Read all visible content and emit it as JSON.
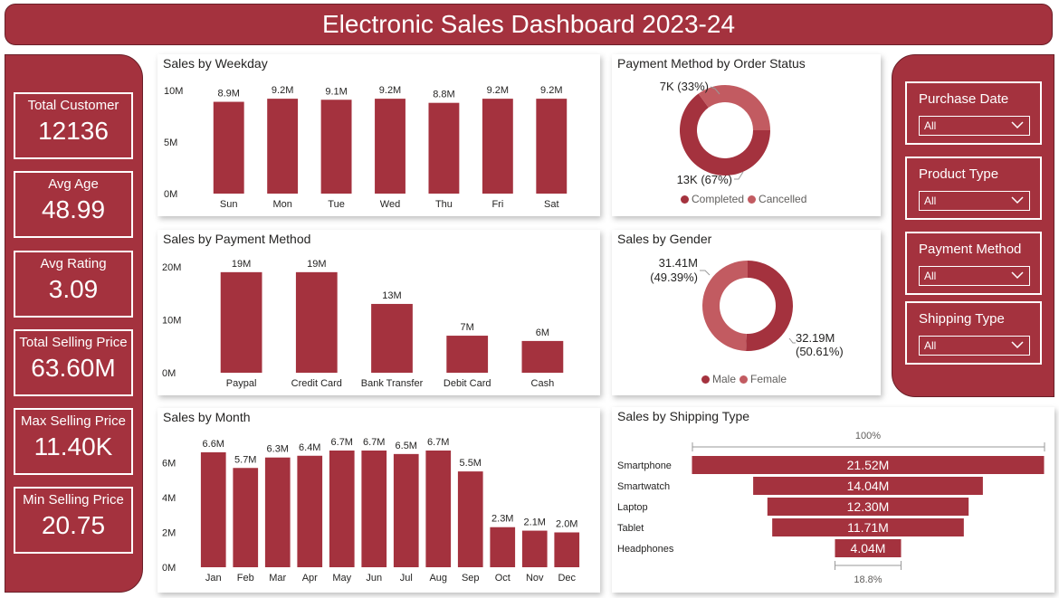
{
  "header": {
    "title": "Electronic Sales Dashboard 2023-24"
  },
  "colors": {
    "primary": "#a4323e",
    "secondary": "#c25b61",
    "border": "#6a1f28"
  },
  "kpis": [
    {
      "label": "Total Customer",
      "value": "12136"
    },
    {
      "label": "Avg Age",
      "value": "48.99"
    },
    {
      "label": "Avg Rating",
      "value": "3.09"
    },
    {
      "label": "Total Selling Price",
      "value": "63.60M"
    },
    {
      "label": "Max Selling Price",
      "value": "11.40K"
    },
    {
      "label": "Min Selling Price",
      "value": "20.75"
    }
  ],
  "slicers": [
    {
      "label": "Purchase Date",
      "value": "All"
    },
    {
      "label": "Product Type",
      "value": "All"
    },
    {
      "label": "Payment Method",
      "value": "All"
    },
    {
      "label": "Shipping Type",
      "value": "All"
    }
  ],
  "chart_data": [
    {
      "type": "bar",
      "title": "Sales by Weekday",
      "categories": [
        "Sun",
        "Mon",
        "Tue",
        "Wed",
        "Thu",
        "Fri",
        "Sat"
      ],
      "values": [
        8.9,
        9.2,
        9.1,
        9.2,
        8.8,
        9.2,
        9.2
      ],
      "data_labels": [
        "8.9M",
        "9.2M",
        "9.1M",
        "9.2M",
        "8.8M",
        "9.2M",
        "9.2M"
      ],
      "yticks": [
        0,
        5,
        10
      ],
      "ytick_labels": [
        "0M",
        "5M",
        "10M"
      ],
      "ylim": [
        0,
        10
      ],
      "unit": "M"
    },
    {
      "type": "bar",
      "title": "Sales by Payment Method",
      "categories": [
        "Paypal",
        "Credit Card",
        "Bank Transfer",
        "Debit Card",
        "Cash"
      ],
      "values": [
        19,
        19,
        13,
        7,
        6
      ],
      "data_labels": [
        "19M",
        "19M",
        "13M",
        "7M",
        "6M"
      ],
      "yticks": [
        0,
        10,
        20
      ],
      "ytick_labels": [
        "0M",
        "10M",
        "20M"
      ],
      "ylim": [
        0,
        20
      ],
      "unit": "M"
    },
    {
      "type": "bar",
      "title": "Sales by Month",
      "categories": [
        "Jan",
        "Feb",
        "Mar",
        "Apr",
        "May",
        "Jun",
        "Jul",
        "Aug",
        "Sep",
        "Oct",
        "Nov",
        "Dec"
      ],
      "values": [
        6.6,
        5.7,
        6.3,
        6.4,
        6.7,
        6.7,
        6.5,
        6.7,
        5.5,
        2.3,
        2.1,
        2.0
      ],
      "data_labels": [
        "6.6M",
        "5.7M",
        "6.3M",
        "6.4M",
        "6.7M",
        "6.7M",
        "6.5M",
        "6.7M",
        "5.5M",
        "2.3M",
        "2.1M",
        "2.0M"
      ],
      "yticks": [
        0,
        2,
        4,
        6
      ],
      "ytick_labels": [
        "0M",
        "2M",
        "4M",
        "6M"
      ],
      "ylim": [
        0,
        6.7
      ],
      "unit": "M"
    },
    {
      "type": "pie",
      "title": "Payment Method by Order Status",
      "donut": true,
      "labels": [
        "Completed",
        "Cancelled"
      ],
      "values": [
        13,
        7
      ],
      "percent": [
        67,
        33
      ],
      "data_labels": [
        "13K (67%)",
        "7K (33%)"
      ],
      "legend": [
        "Completed",
        "Cancelled"
      ]
    },
    {
      "type": "pie",
      "title": "Sales by Gender",
      "donut": true,
      "labels": [
        "Male",
        "Female"
      ],
      "values": [
        32.19,
        31.41
      ],
      "percent": [
        50.61,
        49.39
      ],
      "data_labels": [
        [
          "32.19M",
          "(50.61%)"
        ],
        [
          "31.41M",
          "(49.39%)"
        ]
      ],
      "legend": [
        "Male",
        "Female"
      ]
    },
    {
      "type": "bar",
      "subtype": "funnel",
      "title": "Sales by Shipping Type",
      "categories": [
        "Smartphone",
        "Smartwatch",
        "Laptop",
        "Tablet",
        "Headphones"
      ],
      "values": [
        21.52,
        14.04,
        12.3,
        11.71,
        4.04
      ],
      "data_labels": [
        "21.52M",
        "14.04M",
        "12.30M",
        "11.71M",
        "4.04M"
      ],
      "top_percent_label": "100%",
      "bottom_percent_label": "18.8%"
    }
  ]
}
